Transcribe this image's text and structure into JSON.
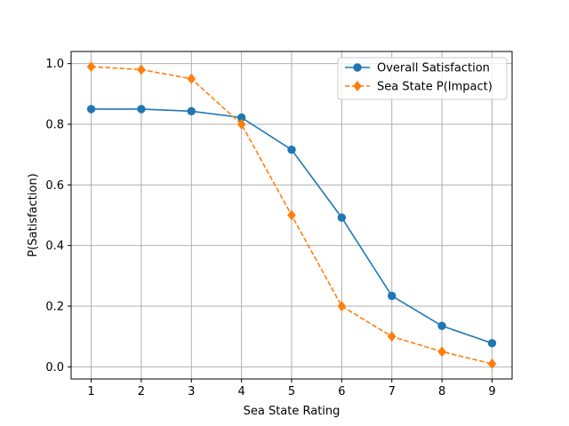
{
  "chart_data": {
    "type": "line",
    "title": "",
    "xlabel": "Sea State Rating",
    "ylabel": "P(Satisfaction)",
    "x": [
      1,
      2,
      3,
      4,
      5,
      6,
      7,
      8,
      9
    ],
    "xticks": [
      "1",
      "2",
      "3",
      "4",
      "5",
      "6",
      "7",
      "8",
      "9"
    ],
    "yticks": [
      "0.0",
      "0.2",
      "0.4",
      "0.6",
      "0.8",
      "1.0"
    ],
    "xlim": [
      0.6,
      9.4
    ],
    "ylim": [
      -0.04,
      1.04
    ],
    "grid": true,
    "legend_position": "top-right",
    "series": [
      {
        "name": "Overall Satisfaction",
        "color": "#1f77b4",
        "marker": "circle",
        "linestyle": "solid",
        "values": [
          0.85,
          0.85,
          0.843,
          0.822,
          0.716,
          0.492,
          0.234,
          0.135,
          0.078
        ]
      },
      {
        "name": "Sea State P(Impact)",
        "color": "#ff7f0e",
        "marker": "diamond",
        "linestyle": "dashed",
        "values": [
          0.99,
          0.98,
          0.95,
          0.8,
          0.5,
          0.2,
          0.1,
          0.05,
          0.01
        ]
      }
    ]
  }
}
